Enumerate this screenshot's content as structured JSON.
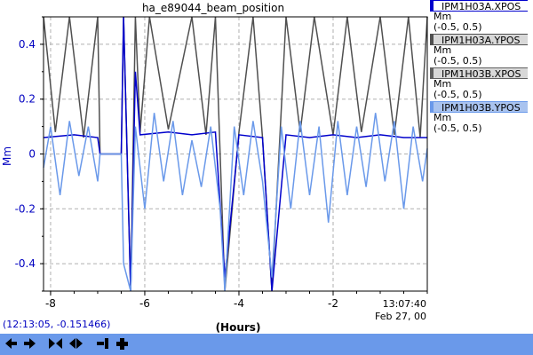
{
  "title": "ha_e89044_beam_position",
  "y_axis_label": "Mm",
  "x_axis_label": "(Hours)",
  "end_time": "13:07:40",
  "end_date": "Feb 27, 00",
  "cursor_readout": "(12:13:05, -0.151466)",
  "legend": [
    {
      "name": "IPM1H03A.XPOS",
      "unit": "Mm",
      "range": "(-0.5, 0.5)",
      "color": "#0000cc"
    },
    {
      "name": "IPM1H03A.YPOS",
      "unit": "Mm",
      "range": "(-0.5, 0.5)",
      "color": "#505050"
    },
    {
      "name": "IPM1H03B.XPOS",
      "unit": "Mm",
      "range": "(-0.5, 0.5)",
      "color": "#606060"
    },
    {
      "name": "IPM1H03B.YPOS",
      "unit": "Mm",
      "range": "(-0.5, 0.5)",
      "color": "#6a99ea"
    }
  ],
  "toolbar": {
    "buttons": [
      {
        "name": "scroll-left-button",
        "icon": "arrow-left-icon"
      },
      {
        "name": "scroll-right-button",
        "icon": "arrow-right-icon"
      },
      {
        "name": "zoom-in-time-button",
        "icon": "arrows-inward-icon"
      },
      {
        "name": "zoom-out-time-button",
        "icon": "arrows-outward-icon"
      },
      {
        "name": "jump-to-end-button",
        "icon": "bar-right-icon"
      },
      {
        "name": "add-plot-button",
        "icon": "plus-icon"
      }
    ]
  },
  "chart_data": {
    "type": "line",
    "title": "ha_e89044_beam_position",
    "xlabel": "(Hours)",
    "ylabel": "Mm",
    "xlim": [
      -8.15,
      0
    ],
    "ylim": [
      -0.5,
      0.5
    ],
    "x_ticks": [
      -8,
      -6,
      -4,
      -2
    ],
    "y_ticks": [
      -0.4,
      -0.2,
      0,
      0.2,
      0.4
    ],
    "x_tick_labels": [
      "-8",
      "-6",
      "-4",
      "-2"
    ],
    "y_tick_labels": [
      "-0.4",
      "-0.2",
      "0",
      "0.2",
      "0.4"
    ],
    "grid": true,
    "series": [
      {
        "name": "IPM1H03A.YPOS",
        "color": "#505050",
        "x": [
          -8.15,
          -7.9,
          -7.6,
          -7.3,
          -7.0,
          -6.95,
          -6.5,
          -6.45,
          -6.3,
          -6.2,
          -6.1,
          -5.9,
          -5.5,
          -5.0,
          -4.7,
          -4.5,
          -4.3,
          -4.0,
          -3.7,
          -3.5,
          -3.3,
          -3.0,
          -2.7,
          -2.4,
          -2.0,
          -1.7,
          -1.4,
          -1.0,
          -0.7,
          -0.4,
          -0.15,
          0
        ],
        "y": [
          0.5,
          0.08,
          0.5,
          0.06,
          0.5,
          0.0,
          0.0,
          0.5,
          -0.5,
          0.5,
          0.08,
          0.5,
          0.09,
          0.5,
          0.07,
          0.5,
          -0.5,
          0.08,
          0.5,
          0.06,
          -0.5,
          0.5,
          0.08,
          0.5,
          0.07,
          0.5,
          0.08,
          0.5,
          0.07,
          0.5,
          0.06,
          0.5
        ]
      },
      {
        "name": "IPM1H03A.XPOS",
        "color": "#0000cc",
        "x": [
          -8.15,
          -7.5,
          -7.0,
          -6.95,
          -6.5,
          -6.45,
          -6.3,
          -6.2,
          -6.1,
          -5.5,
          -5.0,
          -4.5,
          -4.3,
          -4.0,
          -3.5,
          -3.3,
          -3.0,
          -2.5,
          -2.0,
          -1.5,
          -1.0,
          -0.5,
          0
        ],
        "y": [
          0.06,
          0.07,
          0.06,
          0.0,
          0.0,
          0.5,
          -0.5,
          0.3,
          0.07,
          0.08,
          0.07,
          0.08,
          -0.45,
          0.07,
          0.06,
          -0.5,
          0.07,
          0.06,
          0.07,
          0.06,
          0.07,
          0.06,
          0.06
        ]
      },
      {
        "name": "IPM1H03B.YPOS",
        "color": "#6a99ea",
        "x": [
          -8.15,
          -8.0,
          -7.8,
          -7.6,
          -7.4,
          -7.2,
          -7.0,
          -6.95,
          -6.5,
          -6.45,
          -6.3,
          -6.2,
          -6.0,
          -5.8,
          -5.6,
          -5.4,
          -5.2,
          -5.0,
          -4.8,
          -4.6,
          -4.4,
          -4.3,
          -4.1,
          -3.9,
          -3.7,
          -3.5,
          -3.3,
          -3.1,
          -2.9,
          -2.7,
          -2.5,
          -2.3,
          -2.1,
          -1.9,
          -1.7,
          -1.5,
          -1.3,
          -1.1,
          -0.9,
          -0.7,
          -0.5,
          -0.3,
          -0.1,
          0
        ],
        "y": [
          -0.05,
          0.1,
          -0.15,
          0.12,
          -0.08,
          0.1,
          -0.1,
          0.0,
          0.0,
          -0.4,
          -0.5,
          0.1,
          -0.2,
          0.15,
          -0.1,
          0.12,
          -0.15,
          0.05,
          -0.12,
          0.1,
          -0.2,
          -0.5,
          0.1,
          -0.15,
          0.12,
          -0.1,
          -0.45,
          0.1,
          -0.2,
          0.12,
          -0.15,
          0.1,
          -0.25,
          0.12,
          -0.15,
          0.1,
          -0.12,
          0.15,
          -0.1,
          0.12,
          -0.2,
          0.1,
          -0.1,
          0.02
        ]
      }
    ]
  }
}
